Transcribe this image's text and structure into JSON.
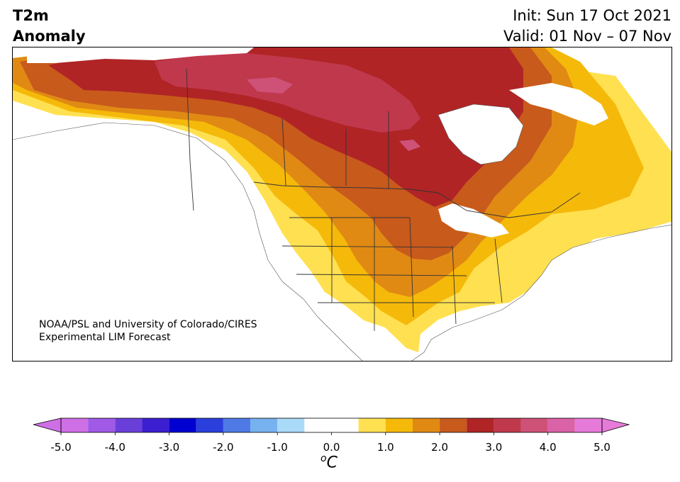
{
  "header": {
    "title_line1": "T2m",
    "title_line2": "Anomaly",
    "init": "Init: Sun 17 Oct 2021",
    "valid": "Valid: 01 Nov – 07 Nov"
  },
  "credit": {
    "line1": "NOAA/PSL and University of Colorado/CIRES",
    "line2": "Experimental LIM Forecast"
  },
  "colorbar": {
    "unit_sup": "o",
    "unit_base": "C",
    "ticks": [
      "-5.0",
      "-4.0",
      "-3.0",
      "-2.0",
      "-1.0",
      "0.0",
      "1.0",
      "2.0",
      "3.0",
      "4.0",
      "5.0"
    ],
    "levels": [
      -5.0,
      -4.5,
      -4.0,
      -3.5,
      -3.0,
      -2.5,
      -2.0,
      -1.5,
      -1.0,
      -0.5,
      0.5,
      1.0,
      1.5,
      2.0,
      2.5,
      3.0,
      3.5,
      4.0,
      4.5,
      5.0
    ],
    "colors": [
      "#cf6fe6",
      "#a05ae6",
      "#6a3fd9",
      "#3b1fd0",
      "#0000d0",
      "#2a3fdc",
      "#4f7ae6",
      "#77b2f0",
      "#a9daf8",
      "#ffffff",
      "#ffe050",
      "#f5b90a",
      "#e08a14",
      "#c85a1c",
      "#b02426",
      "#c0384c",
      "#ce5278",
      "#da62a6",
      "#e57ad8"
    ],
    "under_color": "#cf6fe6",
    "over_color": "#e57ad8"
  },
  "map": {
    "region": "North America",
    "variable": "2m temperature anomaly"
  }
}
